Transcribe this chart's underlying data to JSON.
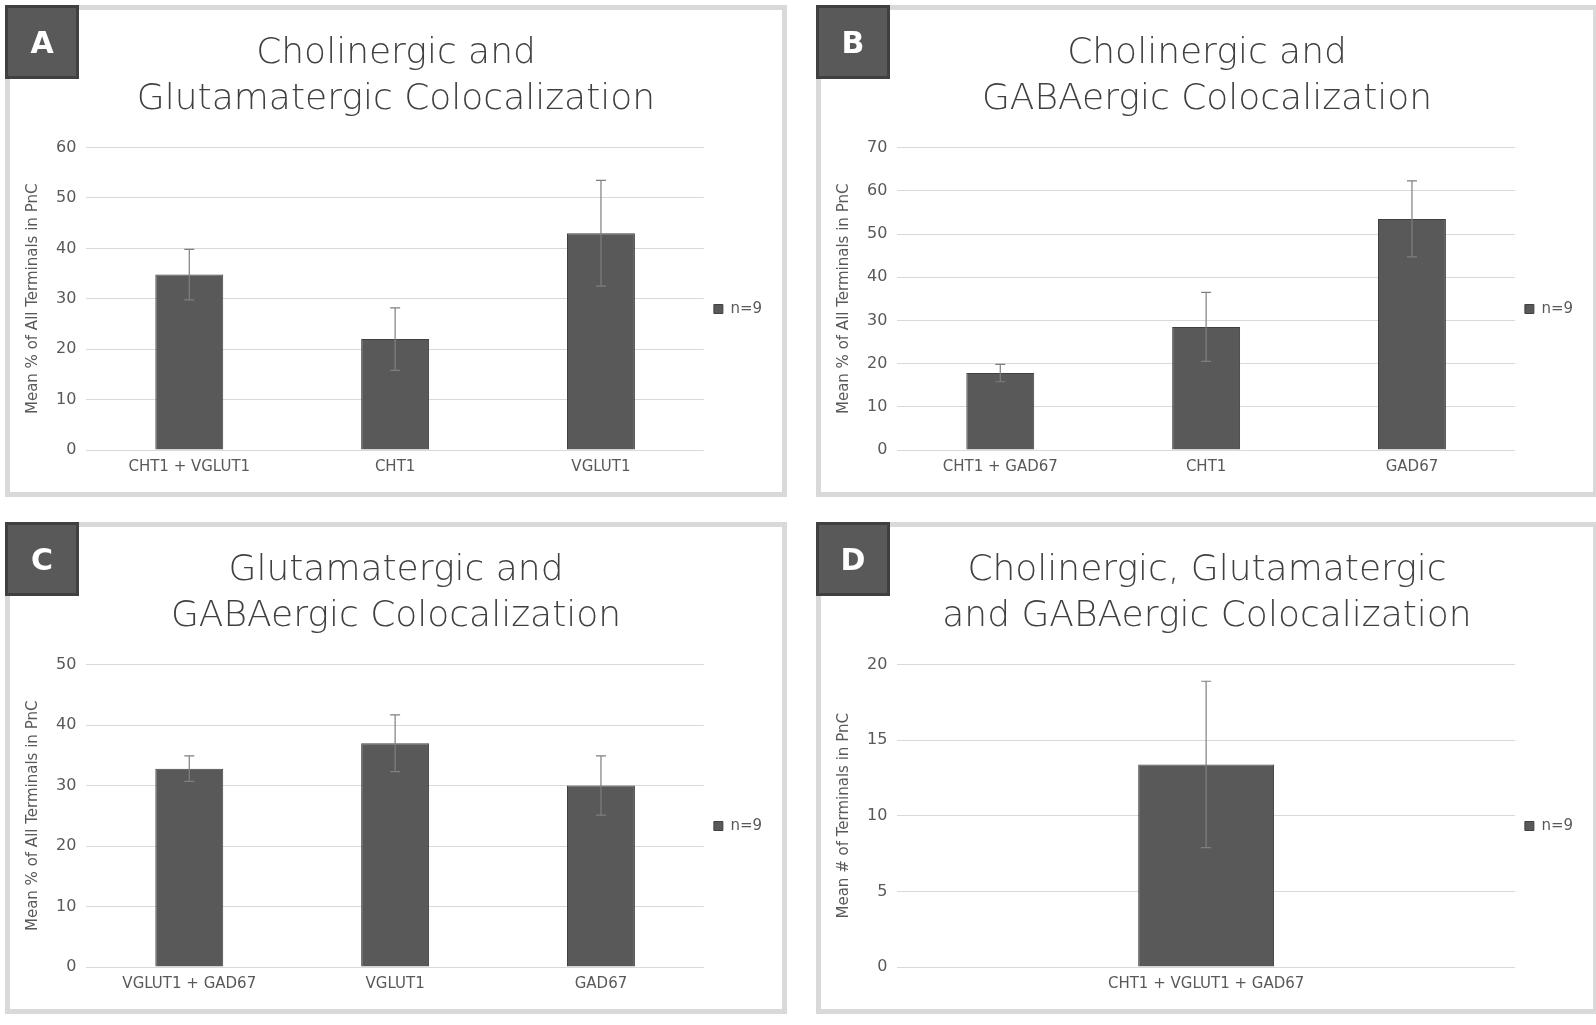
{
  "chart_data": [
    {
      "type": "bar",
      "title": "Cholinergic and Glutamatergic Colocalization",
      "ylabel": "Mean % of All Terminals in PnC",
      "annotations": [
        "A"
      ],
      "categories": [
        "CHT1 + VGLUT1",
        "CHT1",
        "VGLUT1"
      ],
      "ylim": [
        0,
        60
      ],
      "yticks": [
        0,
        10,
        20,
        30,
        40,
        50,
        60
      ],
      "grid": "y",
      "legend": "right",
      "series": [
        {
          "name": "n=9",
          "color": "#595959",
          "values": [
            34.8,
            22.0,
            43.0
          ],
          "errors": [
            5.0,
            6.2,
            10.5
          ]
        }
      ]
    },
    {
      "type": "bar",
      "title": "Cholinergic and GABAergic Colocalization",
      "ylabel": "Mean % of All Terminals in PnC",
      "annotations": [
        "B"
      ],
      "categories": [
        "CHT1 + GAD67",
        "CHT1",
        "GAD67"
      ],
      "ylim": [
        0,
        70
      ],
      "yticks": [
        0,
        10,
        20,
        30,
        40,
        50,
        60,
        70
      ],
      "grid": "y",
      "legend": "right",
      "series": [
        {
          "name": "n=9",
          "color": "#595959",
          "values": [
            17.8,
            28.5,
            53.5
          ],
          "errors": [
            2.0,
            8.0,
            8.8
          ]
        }
      ]
    },
    {
      "type": "bar",
      "title": "Glutamatergic and GABAergic Colocalization",
      "ylabel": "Mean % of All Terminals in PnC",
      "annotations": [
        "C"
      ],
      "categories": [
        "VGLUT1 + GAD67",
        "VGLUT1",
        "GAD67"
      ],
      "ylim": [
        0,
        50
      ],
      "yticks": [
        0,
        10,
        20,
        30,
        40,
        50
      ],
      "grid": "y",
      "legend": "right",
      "series": [
        {
          "name": "n=9",
          "color": "#595959",
          "values": [
            32.8,
            37.0,
            30.0
          ],
          "errors": [
            2.1,
            4.7,
            4.9
          ]
        }
      ]
    },
    {
      "type": "bar",
      "title": "Cholinergic, Glutamatergic and GABAergic Colocalization",
      "ylabel": "Mean # of Terminals in PnC",
      "annotations": [
        "D"
      ],
      "categories": [
        "CHT1 + VGLUT1 + GAD67"
      ],
      "ylim": [
        0,
        20
      ],
      "yticks": [
        0,
        5,
        10,
        15,
        20
      ],
      "grid": "y",
      "legend": "right",
      "series": [
        {
          "name": "n=9",
          "color": "#595959",
          "values": [
            13.4
          ],
          "errors": [
            5.5
          ]
        }
      ]
    }
  ]
}
